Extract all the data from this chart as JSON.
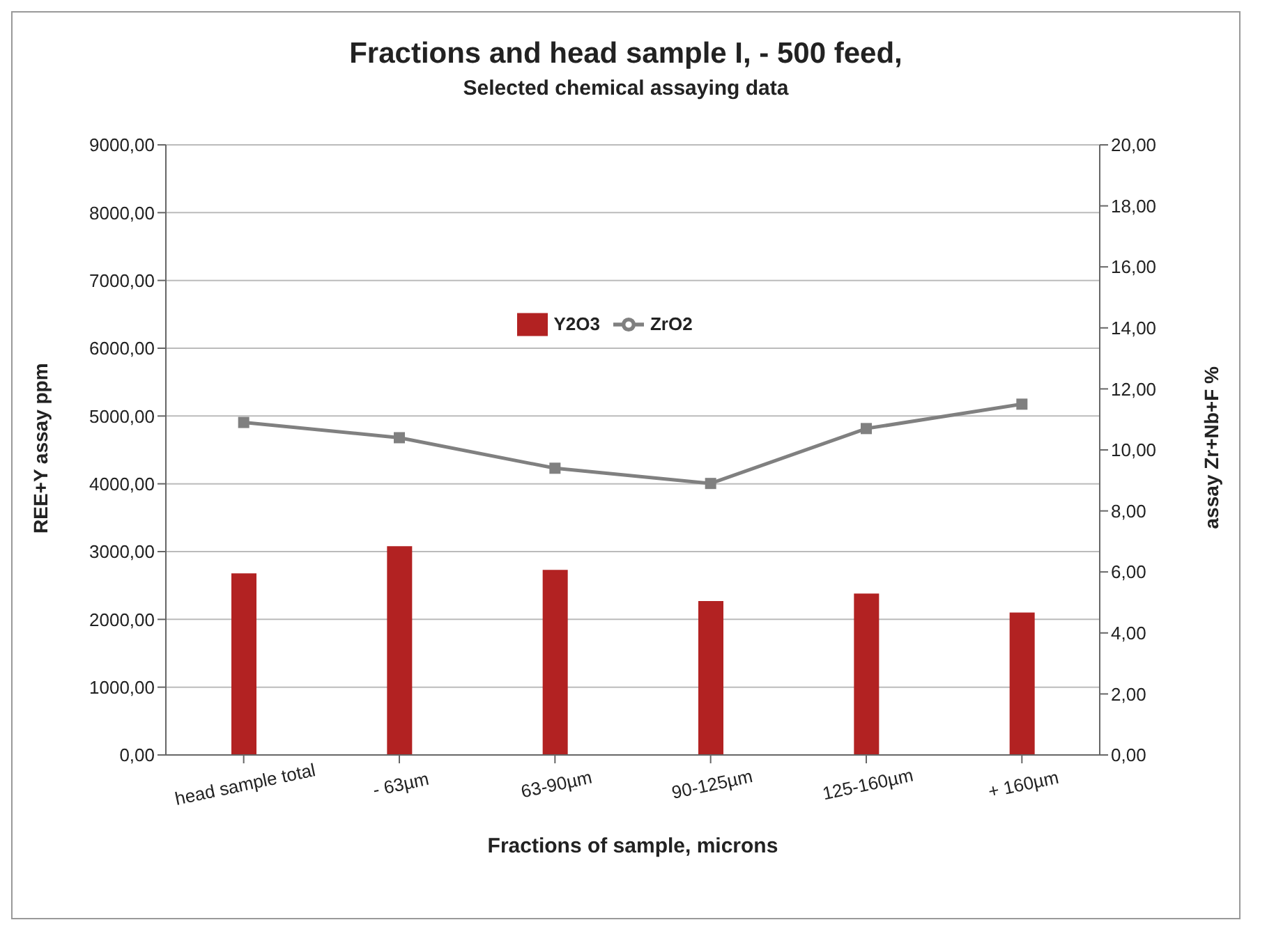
{
  "chart_data": {
    "type": "bar",
    "title": "Fractions and head sample I, - 500 feed,",
    "subtitle": "Selected chemical assaying data",
    "xlabel": "Fractions of sample, microns",
    "ylabel": "REE+Y assay ppm",
    "y2label": "assay Zr+Nb+F %",
    "categories": [
      "head sample total",
      "- 63µm",
      "63-90µm",
      "90-125µm",
      "125-160µm",
      "+ 160µm"
    ],
    "series": [
      {
        "name": "Y2O3",
        "color": "#b22222",
        "values": [
          2680,
          3080,
          2730,
          2270,
          2380,
          2100
        ]
      },
      {
        "name": "ZrO2",
        "type": "line",
        "axis": "y2",
        "color": "#808080",
        "marker": "square",
        "values": [
          10.9,
          10.4,
          9.4,
          8.9,
          10.7,
          11.5
        ]
      }
    ],
    "ylim": [
      0,
      9000
    ],
    "yticks": [
      {
        "value": 0,
        "label": "0,00"
      },
      {
        "value": 1000,
        "label": "1000,00"
      },
      {
        "value": 2000,
        "label": "2000,00"
      },
      {
        "value": 3000,
        "label": "3000,00"
      },
      {
        "value": 4000,
        "label": "4000,00"
      },
      {
        "value": 5000,
        "label": "5000,00"
      },
      {
        "value": 6000,
        "label": "6000,00"
      },
      {
        "value": 7000,
        "label": "7000,00"
      },
      {
        "value": 8000,
        "label": "8000,00"
      },
      {
        "value": 9000,
        "label": "9000,00"
      }
    ],
    "y2lim": [
      0,
      20
    ],
    "y2ticks": [
      {
        "value": 0,
        "label": "0,00"
      },
      {
        "value": 2,
        "label": "2,00"
      },
      {
        "value": 4,
        "label": "4,00"
      },
      {
        "value": 6,
        "label": "6,00"
      },
      {
        "value": 8,
        "label": "8,00"
      },
      {
        "value": 10,
        "label": "10,00"
      },
      {
        "value": 12,
        "label": "12,00"
      },
      {
        "value": 14,
        "label": "14,00"
      },
      {
        "value": 16,
        "label": "16,00"
      },
      {
        "value": 18,
        "label": "18,00"
      },
      {
        "value": 20,
        "label": "20,00"
      }
    ],
    "grid": "y",
    "legend": "top"
  }
}
